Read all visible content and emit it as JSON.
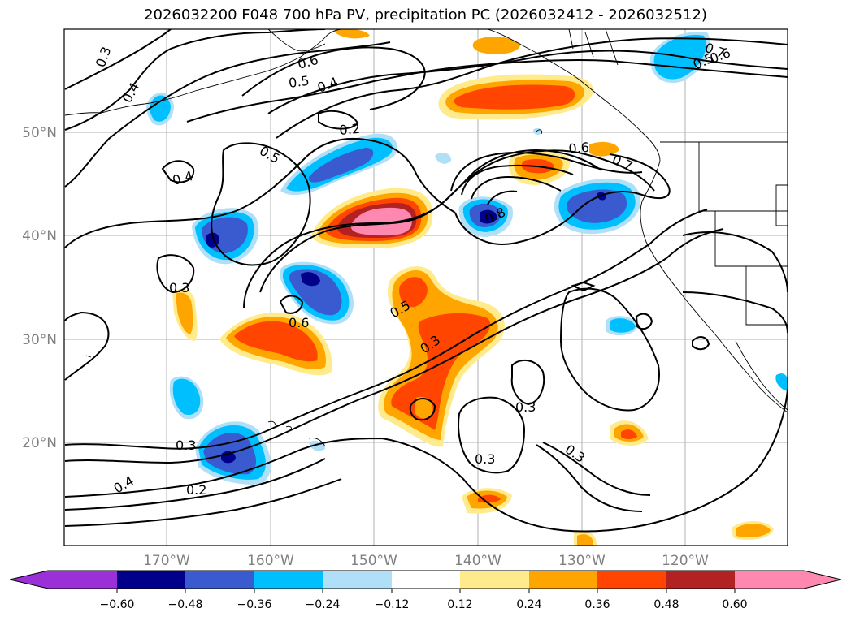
{
  "title": "2026032200 F048 700 hPa PV, precipitation PC (2026032412 - 2026032512)",
  "colors": {
    "purple": "#9b30d9",
    "navy": "#00008b",
    "royal": "#3a5bd0",
    "sky": "#00bfff",
    "pale_blue": "#b0e0f8",
    "white": "#ffffff",
    "pale_yellow": "#ffeb8c",
    "orange": "#ffa500",
    "red_orange": "#ff4500",
    "brick": "#b22222",
    "pink": "#ff88b0",
    "grid": "#b0b0b0",
    "tick_text": "#808080"
  },
  "map": {
    "lat_labels": [
      "50°N",
      "40°N",
      "30°N",
      "20°N"
    ],
    "lon_labels": [
      "170°W",
      "160°W",
      "150°W",
      "140°W",
      "130°W",
      "120°W"
    ],
    "contour_labels": [
      "0.3",
      "0.4",
      "0.6",
      "0.5",
      "0.4",
      "0.2",
      "0.5",
      "0.4",
      "0.6",
      "0.7",
      "0.8",
      "0.7",
      "0.6",
      "0.5",
      "0.3",
      "0.6",
      "0.5",
      "0.3",
      "0.3",
      "0.3",
      "0.3",
      "0.3",
      "0.4",
      "0.2"
    ]
  },
  "colorbar": {
    "ticks": [
      "−0.60",
      "−0.48",
      "−0.36",
      "−0.24",
      "−0.12",
      "0.12",
      "0.24",
      "0.36",
      "0.48",
      "0.60"
    ]
  }
}
